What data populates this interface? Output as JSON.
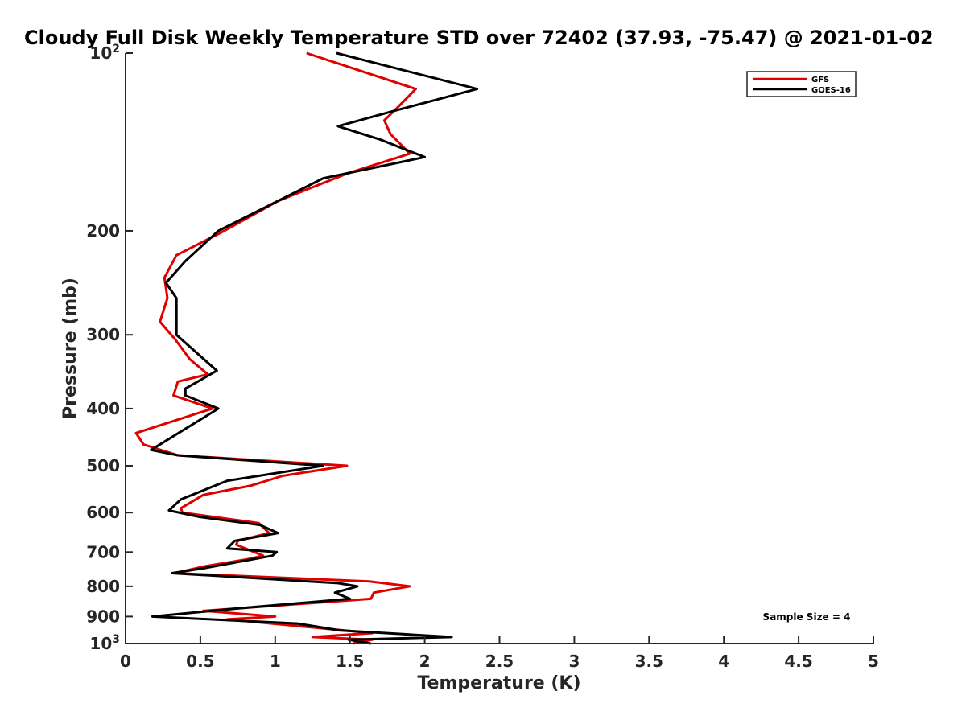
{
  "chart_data": {
    "type": "line",
    "title": "Cloudy Full Disk Weekly Temperature STD over 72402 (37.93, -75.47) @ 2021-01-02",
    "xlabel": "Temperature (K)",
    "ylabel": "Pressure (mb)",
    "xlim": [
      0,
      5
    ],
    "ylim": [
      100,
      1000
    ],
    "yscale": "log",
    "y_reversed": true,
    "grid": false,
    "legend_position": "top-right",
    "x_ticks": [
      {
        "value": 0,
        "label": "0"
      },
      {
        "value": 0.5,
        "label": "0.5"
      },
      {
        "value": 1,
        "label": "1"
      },
      {
        "value": 1.5,
        "label": "1.5"
      },
      {
        "value": 2,
        "label": "2"
      },
      {
        "value": 2.5,
        "label": "2.5"
      },
      {
        "value": 3,
        "label": "3"
      },
      {
        "value": 3.5,
        "label": "3.5"
      },
      {
        "value": 4,
        "label": "4"
      },
      {
        "value": 4.5,
        "label": "4.5"
      },
      {
        "value": 5,
        "label": "5"
      }
    ],
    "y_ticks": [
      {
        "value": 100,
        "base": "10",
        "exp": "2"
      },
      {
        "value": 200,
        "label": "200"
      },
      {
        "value": 300,
        "label": "300"
      },
      {
        "value": 400,
        "label": "400"
      },
      {
        "value": 500,
        "label": "500"
      },
      {
        "value": 600,
        "label": "600"
      },
      {
        "value": 700,
        "label": "700"
      },
      {
        "value": 800,
        "label": "800"
      },
      {
        "value": 900,
        "label": "900"
      },
      {
        "value": 1000,
        "base": "10",
        "exp": "3"
      }
    ],
    "series": [
      {
        "name": "GFS",
        "color": "#e00000",
        "points": [
          [
            1.21,
            100
          ],
          [
            1.94,
            115
          ],
          [
            1.8,
            125
          ],
          [
            1.73,
            130
          ],
          [
            1.77,
            137
          ],
          [
            1.9,
            148
          ],
          [
            1.48,
            160
          ],
          [
            1.02,
            178
          ],
          [
            0.66,
            200
          ],
          [
            0.34,
            220
          ],
          [
            0.26,
            240
          ],
          [
            0.28,
            260
          ],
          [
            0.23,
            285
          ],
          [
            0.33,
            305
          ],
          [
            0.43,
            330
          ],
          [
            0.55,
            350
          ],
          [
            0.35,
            360
          ],
          [
            0.32,
            380
          ],
          [
            0.58,
            400
          ],
          [
            0.07,
            440
          ],
          [
            0.12,
            460
          ],
          [
            0.35,
            480
          ],
          [
            1.48,
            500
          ],
          [
            1.05,
            520
          ],
          [
            0.84,
            540
          ],
          [
            0.52,
            560
          ],
          [
            0.37,
            590
          ],
          [
            0.38,
            600
          ],
          [
            0.89,
            625
          ],
          [
            0.96,
            650
          ],
          [
            0.75,
            670
          ],
          [
            0.74,
            680
          ],
          [
            0.86,
            700
          ],
          [
            0.92,
            710
          ],
          [
            0.81,
            720
          ],
          [
            0.53,
            740
          ],
          [
            0.33,
            760
          ],
          [
            1.63,
            785
          ],
          [
            1.9,
            800
          ],
          [
            1.66,
            820
          ],
          [
            1.64,
            840
          ],
          [
            0.52,
            880
          ],
          [
            1.0,
            900
          ],
          [
            0.68,
            910
          ],
          [
            1.65,
            960
          ],
          [
            1.25,
            975
          ],
          [
            1.65,
            985
          ],
          [
            1.52,
            1000
          ]
        ]
      },
      {
        "name": "GOES-16",
        "color": "#000000",
        "points": [
          [
            1.41,
            100
          ],
          [
            2.35,
            115
          ],
          [
            1.81,
            125
          ],
          [
            1.42,
            133
          ],
          [
            1.7,
            140
          ],
          [
            2.0,
            150
          ],
          [
            1.32,
            163
          ],
          [
            0.62,
            200
          ],
          [
            0.4,
            225
          ],
          [
            0.27,
            245
          ],
          [
            0.34,
            260
          ],
          [
            0.34,
            300
          ],
          [
            0.61,
            345
          ],
          [
            0.4,
            370
          ],
          [
            0.4,
            380
          ],
          [
            0.62,
            400
          ],
          [
            0.17,
            470
          ],
          [
            0.35,
            480
          ],
          [
            1.32,
            500
          ],
          [
            0.68,
            530
          ],
          [
            0.37,
            570
          ],
          [
            0.29,
            595
          ],
          [
            0.49,
            610
          ],
          [
            0.9,
            630
          ],
          [
            1.02,
            650
          ],
          [
            0.73,
            670
          ],
          [
            0.68,
            690
          ],
          [
            1.01,
            700
          ],
          [
            0.98,
            710
          ],
          [
            0.53,
            745
          ],
          [
            0.31,
            760
          ],
          [
            1.42,
            790
          ],
          [
            1.55,
            800
          ],
          [
            1.4,
            820
          ],
          [
            1.5,
            840
          ],
          [
            0.79,
            870
          ],
          [
            0.18,
            900
          ],
          [
            1.15,
            925
          ],
          [
            1.43,
            950
          ],
          [
            2.18,
            975
          ],
          [
            1.49,
            985
          ],
          [
            1.64,
            1000
          ]
        ]
      }
    ],
    "annotation": "Sample Size = 4"
  }
}
